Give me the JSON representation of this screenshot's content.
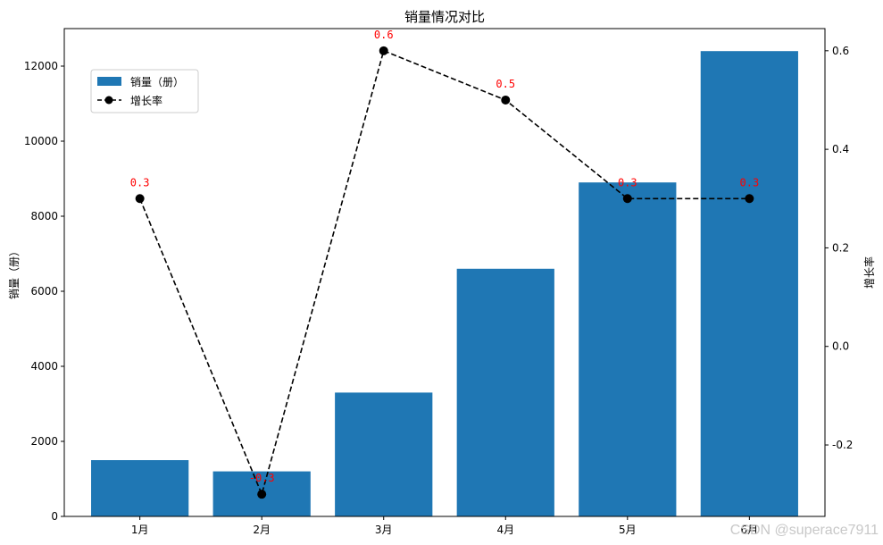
{
  "chart_data": {
    "type": "bar",
    "title": "销量情况对比",
    "categories": [
      "1月",
      "2月",
      "3月",
      "4月",
      "5月",
      "6月"
    ],
    "series": [
      {
        "name": "销量（册）",
        "type": "bar",
        "axis": "left",
        "values": [
          1500,
          1200,
          3300,
          6600,
          8900,
          12400
        ]
      },
      {
        "name": "增长率",
        "type": "line",
        "axis": "right",
        "values": [
          0.3,
          -0.3,
          0.6,
          0.5,
          0.3,
          0.3
        ],
        "labels": [
          "0.3",
          "-0.3",
          "0.6",
          "0.5",
          "0.3",
          "0.3"
        ]
      }
    ],
    "ylabel": "销量（册）",
    "y2label": "增长率",
    "ylim": [
      0,
      13000
    ],
    "y2lim": [
      -0.345,
      0.645
    ],
    "yticks": [
      0,
      2000,
      4000,
      6000,
      8000,
      10000,
      12000
    ],
    "y2ticks": [
      -0.2,
      0.0,
      0.2,
      0.4,
      0.6
    ],
    "y2tick_labels": [
      "-0.2",
      "0.0",
      "0.2",
      "0.4",
      "0.6"
    ],
    "grid": false,
    "legend_position": "upper-left",
    "colors": {
      "bar": "#1f77b4",
      "line": "#000000",
      "data_label": "#ff0000"
    }
  },
  "watermark": "CSDN @superace7911"
}
